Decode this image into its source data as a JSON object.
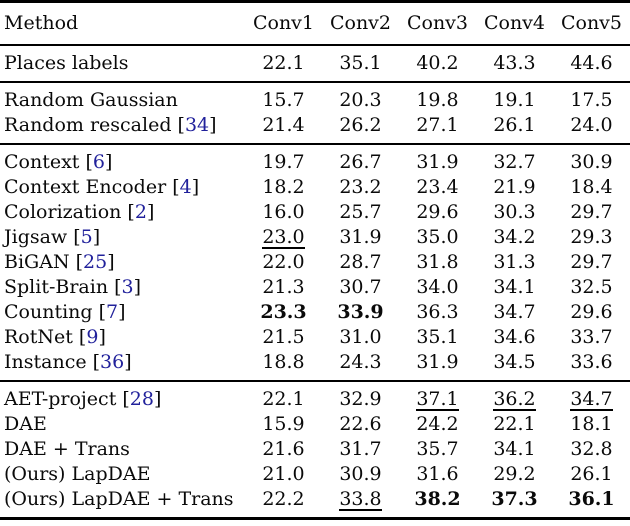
{
  "colors": {
    "citation": "#21219b",
    "text": "#0a0a0a",
    "rule": "#000000"
  },
  "table": {
    "header": [
      "Method",
      "Conv1",
      "Conv2",
      "Conv3",
      "Conv4",
      "Conv5"
    ],
    "sections": [
      {
        "rows": [
          {
            "method": "Places labels",
            "cite": "",
            "values": [
              "22.1",
              "35.1",
              "40.2",
              "43.3",
              "44.6"
            ]
          }
        ]
      },
      {
        "rows": [
          {
            "method": "Random Gaussian",
            "cite": "",
            "values": [
              "15.7",
              "20.3",
              "19.8",
              "19.1",
              "17.5"
            ]
          },
          {
            "method": "Random rescaled",
            "cite": "34",
            "values": [
              "21.4",
              "26.2",
              "27.1",
              "26.1",
              "24.0"
            ]
          }
        ]
      },
      {
        "rows": [
          {
            "method": "Context",
            "cite": "6",
            "values": [
              "19.7",
              "26.7",
              "31.9",
              "32.7",
              "30.9"
            ]
          },
          {
            "method": "Context Encoder",
            "cite": "4",
            "values": [
              "18.2",
              "23.2",
              "23.4",
              "21.9",
              "18.4"
            ]
          },
          {
            "method": "Colorization",
            "cite": "2",
            "values": [
              "16.0",
              "25.7",
              "29.6",
              "30.3",
              "29.7"
            ]
          },
          {
            "method": "Jigsaw",
            "cite": "5",
            "values": [
              {
                "v": "23.0",
                "f": "u"
              },
              "31.9",
              "35.0",
              "34.2",
              "29.3"
            ]
          },
          {
            "method": "BiGAN",
            "cite": "25",
            "values": [
              "22.0",
              "28.7",
              "31.8",
              "31.3",
              "29.7"
            ]
          },
          {
            "method": "Split-Brain",
            "cite": "3",
            "values": [
              "21.3",
              "30.7",
              "34.0",
              "34.1",
              "32.5"
            ]
          },
          {
            "method": "Counting",
            "cite": "7",
            "values": [
              {
                "v": "23.3",
                "f": "b"
              },
              {
                "v": "33.9",
                "f": "b"
              },
              "36.3",
              "34.7",
              "29.6"
            ]
          },
          {
            "method": "RotNet",
            "cite": "9",
            "values": [
              "21.5",
              "31.0",
              "35.1",
              "34.6",
              "33.7"
            ]
          },
          {
            "method": "Instance",
            "cite": "36",
            "values": [
              "18.8",
              "24.3",
              "31.9",
              "34.5",
              "33.6"
            ]
          }
        ]
      },
      {
        "rows": [
          {
            "method": "AET-project",
            "cite": "28",
            "values": [
              "22.1",
              "32.9",
              {
                "v": "37.1",
                "f": "u"
              },
              {
                "v": "36.2",
                "f": "u"
              },
              {
                "v": "34.7",
                "f": "u"
              }
            ]
          },
          {
            "method": "DAE",
            "cite": "",
            "values": [
              "15.9",
              "22.6",
              "24.2",
              "22.1",
              "18.1"
            ]
          },
          {
            "method": "DAE + Trans",
            "cite": "",
            "values": [
              "21.6",
              "31.7",
              "35.7",
              "34.1",
              "32.8"
            ]
          },
          {
            "method": "(Ours) LapDAE",
            "cite": "",
            "values": [
              "21.0",
              "30.9",
              "31.6",
              "29.2",
              "26.1"
            ]
          },
          {
            "method": "(Ours) LapDAE + Trans",
            "cite": "",
            "values": [
              "22.2",
              {
                "v": "33.8",
                "f": "u"
              },
              {
                "v": "38.2",
                "f": "b"
              },
              {
                "v": "37.3",
                "f": "b"
              },
              {
                "v": "36.1",
                "f": "b"
              }
            ]
          }
        ]
      }
    ]
  }
}
